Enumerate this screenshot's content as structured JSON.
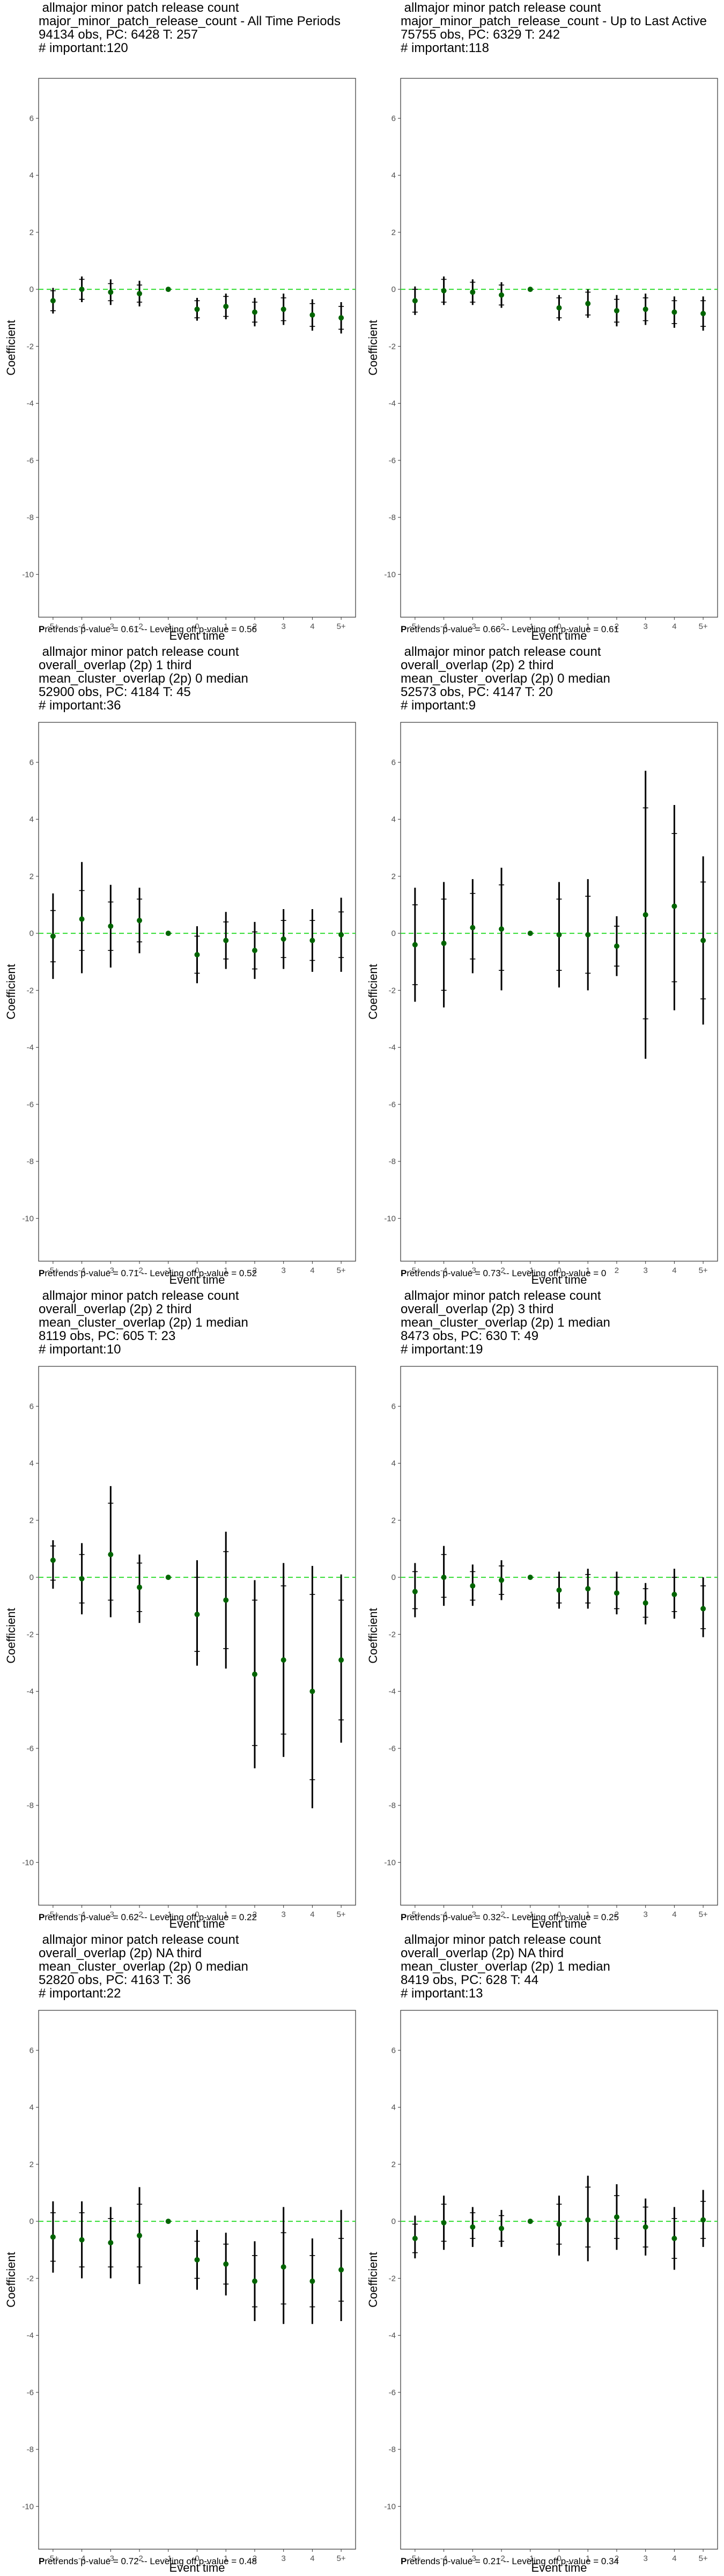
{
  "shared": {
    "xlabel": "Event time",
    "ylabel": "Coefficient",
    "x_ticks": [
      "-5+",
      "-4",
      "-3",
      "-2",
      "-1",
      "0",
      "1",
      "2",
      "3",
      "4",
      "5+"
    ],
    "y_ticks": [
      6,
      4,
      2,
      0,
      -2,
      -4,
      -6,
      -8,
      -10
    ],
    "ylim": [
      -11.5,
      7.4
    ],
    "caption_lead": "P",
    "reference_line": 0,
    "colors": {
      "reference_line": "#33dd33",
      "point": "#006400",
      "error_bar": "#000000",
      "panel_border": "#333333",
      "tick_label": "#4d4d4d"
    }
  },
  "chart_data": [
    {
      "type": "scatter",
      "title_lines": [
        " allmajor minor patch release count",
        "major_minor_patch_release_count - All Time Periods",
        "94134 obs, PC: 6428 T: 257",
        "# important:120"
      ],
      "caption": "retrends p-value = 0.61 -- Leveling off p-value = 0.56",
      "points": [
        {
          "x": "-5+",
          "y": -0.4,
          "lo90": -0.75,
          "hi90": -0.05,
          "lo95": -0.85,
          "hi95": 0.05
        },
        {
          "x": "-4",
          "y": 0.0,
          "lo90": -0.35,
          "hi90": 0.35,
          "lo95": -0.45,
          "hi95": 0.45
        },
        {
          "x": "-3",
          "y": -0.1,
          "lo90": -0.4,
          "hi90": 0.2,
          "lo95": -0.55,
          "hi95": 0.35
        },
        {
          "x": "-2",
          "y": -0.15,
          "lo90": -0.45,
          "hi90": 0.15,
          "lo95": -0.6,
          "hi95": 0.3
        },
        {
          "x": "-1",
          "y": 0.0
        },
        {
          "x": "0",
          "y": -0.7,
          "lo90": -1.0,
          "hi90": -0.4,
          "lo95": -1.1,
          "hi95": -0.3
        },
        {
          "x": "1",
          "y": -0.6,
          "lo90": -0.95,
          "hi90": -0.25,
          "lo95": -1.05,
          "hi95": -0.15
        },
        {
          "x": "2",
          "y": -0.8,
          "lo90": -1.15,
          "hi90": -0.45,
          "lo95": -1.3,
          "hi95": -0.3
        },
        {
          "x": "3",
          "y": -0.7,
          "lo90": -1.1,
          "hi90": -0.3,
          "lo95": -1.25,
          "hi95": -0.15
        },
        {
          "x": "4",
          "y": -0.9,
          "lo90": -1.3,
          "hi90": -0.5,
          "lo95": -1.45,
          "hi95": -0.35
        },
        {
          "x": "5+",
          "y": -1.0,
          "lo90": -1.4,
          "hi90": -0.6,
          "lo95": -1.55,
          "hi95": -0.45
        }
      ]
    },
    {
      "type": "scatter",
      "title_lines": [
        " allmajor minor patch release count",
        "major_minor_patch_release_count - Up to Last Active",
        "75755 obs, PC: 6329 T: 242",
        "# important:118"
      ],
      "caption": "retrends p-value = 0.66 -- Leveling off p-value = 0.61",
      "points": [
        {
          "x": "-5+",
          "y": -0.4,
          "lo90": -0.8,
          "hi90": 0.0,
          "lo95": -0.9,
          "hi95": 0.1
        },
        {
          "x": "-4",
          "y": -0.05,
          "lo90": -0.45,
          "hi90": 0.35,
          "lo95": -0.55,
          "hi95": 0.45
        },
        {
          "x": "-3",
          "y": -0.1,
          "lo90": -0.45,
          "hi90": 0.25,
          "lo95": -0.55,
          "hi95": 0.35
        },
        {
          "x": "-2",
          "y": -0.2,
          "lo90": -0.55,
          "hi90": 0.15,
          "lo95": -0.65,
          "hi95": 0.25
        },
        {
          "x": "-1",
          "y": 0.0
        },
        {
          "x": "0",
          "y": -0.65,
          "lo90": -1.0,
          "hi90": -0.3,
          "lo95": -1.1,
          "hi95": -0.2
        },
        {
          "x": "1",
          "y": -0.5,
          "lo90": -0.9,
          "hi90": -0.1,
          "lo95": -1.0,
          "hi95": 0.0
        },
        {
          "x": "2",
          "y": -0.75,
          "lo90": -1.15,
          "hi90": -0.35,
          "lo95": -1.3,
          "hi95": -0.2
        },
        {
          "x": "3",
          "y": -0.7,
          "lo90": -1.1,
          "hi90": -0.3,
          "lo95": -1.25,
          "hi95": -0.15
        },
        {
          "x": "4",
          "y": -0.8,
          "lo90": -1.2,
          "hi90": -0.4,
          "lo95": -1.35,
          "hi95": -0.25
        },
        {
          "x": "5+",
          "y": -0.85,
          "lo90": -1.3,
          "hi90": -0.4,
          "lo95": -1.45,
          "hi95": -0.25
        }
      ]
    },
    {
      "type": "scatter",
      "title_lines": [
        " allmajor minor patch release count",
        "overall_overlap (2p) 1 third",
        "mean_cluster_overlap (2p) 0 median",
        "52900 obs, PC: 4184 T: 45",
        "# important:36"
      ],
      "caption": "retrends p-value = 0.71 -- Leveling off p-value = 0.52",
      "points": [
        {
          "x": "-5+",
          "y": -0.1,
          "lo90": -1.0,
          "hi90": 0.8,
          "lo95": -1.6,
          "hi95": 1.4
        },
        {
          "x": "-4",
          "y": 0.5,
          "lo90": -0.6,
          "hi90": 1.5,
          "lo95": -1.4,
          "hi95": 2.5
        },
        {
          "x": "-3",
          "y": 0.25,
          "lo90": -0.6,
          "hi90": 1.1,
          "lo95": -1.2,
          "hi95": 1.7
        },
        {
          "x": "-2",
          "y": 0.45,
          "lo90": -0.3,
          "hi90": 1.2,
          "lo95": -0.7,
          "hi95": 1.6
        },
        {
          "x": "-1",
          "y": 0.0
        },
        {
          "x": "0",
          "y": -0.75,
          "lo90": -1.4,
          "hi90": -0.1,
          "lo95": -1.75,
          "hi95": 0.25
        },
        {
          "x": "1",
          "y": -0.25,
          "lo90": -0.9,
          "hi90": 0.4,
          "lo95": -1.25,
          "hi95": 0.75
        },
        {
          "x": "2",
          "y": -0.6,
          "lo90": -1.25,
          "hi90": 0.05,
          "lo95": -1.6,
          "hi95": 0.4
        },
        {
          "x": "3",
          "y": -0.2,
          "lo90": -0.85,
          "hi90": 0.45,
          "lo95": -1.25,
          "hi95": 0.85
        },
        {
          "x": "4",
          "y": -0.25,
          "lo90": -0.95,
          "hi90": 0.45,
          "lo95": -1.35,
          "hi95": 0.85
        },
        {
          "x": "5+",
          "y": -0.05,
          "lo90": -0.85,
          "hi90": 0.75,
          "lo95": -1.35,
          "hi95": 1.25
        }
      ]
    },
    {
      "type": "scatter",
      "title_lines": [
        " allmajor minor patch release count",
        "overall_overlap (2p) 2 third",
        "mean_cluster_overlap (2p) 0 median",
        "52573 obs, PC: 4147 T: 20",
        "# important:9"
      ],
      "caption": "retrends p-value = 0.73 -- Leveling off p-value = 0",
      "points": [
        {
          "x": "-5+",
          "y": -0.4,
          "lo90": -1.8,
          "hi90": 1.0,
          "lo95": -2.4,
          "hi95": 1.6
        },
        {
          "x": "-4",
          "y": -0.35,
          "lo90": -2.0,
          "hi90": 1.2,
          "lo95": -2.6,
          "hi95": 1.8
        },
        {
          "x": "-3",
          "y": 0.2,
          "lo90": -0.9,
          "hi90": 1.4,
          "lo95": -1.4,
          "hi95": 1.9
        },
        {
          "x": "-2",
          "y": 0.15,
          "lo90": -1.3,
          "hi90": 1.7,
          "lo95": -2.0,
          "hi95": 2.3
        },
        {
          "x": "-1",
          "y": 0.0
        },
        {
          "x": "0",
          "y": -0.05,
          "lo90": -1.3,
          "hi90": 1.2,
          "lo95": -1.9,
          "hi95": 1.8
        },
        {
          "x": "1",
          "y": -0.05,
          "lo90": -1.4,
          "hi90": 1.3,
          "lo95": -2.0,
          "hi95": 1.9
        },
        {
          "x": "2",
          "y": -0.45,
          "lo90": -1.15,
          "hi90": 0.25,
          "lo95": -1.5,
          "hi95": 0.6
        },
        {
          "x": "3",
          "y": 0.65,
          "lo90": -3.0,
          "hi90": 4.4,
          "lo95": -4.4,
          "hi95": 5.7
        },
        {
          "x": "4",
          "y": 0.95,
          "lo90": -1.7,
          "hi90": 3.5,
          "lo95": -2.7,
          "hi95": 4.5
        },
        {
          "x": "5+",
          "y": -0.25,
          "lo90": -2.3,
          "hi90": 1.8,
          "lo95": -3.2,
          "hi95": 2.7
        }
      ]
    },
    {
      "type": "scatter",
      "title_lines": [
        " allmajor minor patch release count",
        "overall_overlap (2p) 2 third",
        "mean_cluster_overlap (2p) 1 median",
        "8119 obs, PC: 605 T: 23",
        "# important:10"
      ],
      "caption": "retrends p-value = 0.62 -- Leveling off p-value = 0.22",
      "points": [
        {
          "x": "-5+",
          "y": 0.6,
          "lo90": -0.1,
          "hi90": 1.1,
          "lo95": -0.4,
          "hi95": 1.3
        },
        {
          "x": "-4",
          "y": -0.05,
          "lo90": -0.9,
          "hi90": 0.8,
          "lo95": -1.3,
          "hi95": 1.2
        },
        {
          "x": "-3",
          "y": 0.8,
          "lo90": -0.8,
          "hi90": 2.6,
          "lo95": -1.4,
          "hi95": 3.2
        },
        {
          "x": "-2",
          "y": -0.35,
          "lo90": -1.2,
          "hi90": 0.5,
          "lo95": -1.6,
          "hi95": 0.8
        },
        {
          "x": "-1",
          "y": 0.0
        },
        {
          "x": "0",
          "y": -1.3,
          "lo90": -2.6,
          "hi90": 0.0,
          "lo95": -3.1,
          "hi95": 0.6
        },
        {
          "x": "1",
          "y": -0.8,
          "lo90": -2.5,
          "hi90": 0.9,
          "lo95": -3.2,
          "hi95": 1.6
        },
        {
          "x": "2",
          "y": -3.4,
          "lo90": -5.9,
          "hi90": -0.8,
          "lo95": -6.7,
          "hi95": -0.1
        },
        {
          "x": "3",
          "y": -2.9,
          "lo90": -5.5,
          "hi90": -0.3,
          "lo95": -6.3,
          "hi95": 0.5
        },
        {
          "x": "4",
          "y": -4.0,
          "lo90": -7.1,
          "hi90": -0.6,
          "lo95": -8.1,
          "hi95": 0.4
        },
        {
          "x": "5+",
          "y": -2.9,
          "lo90": -5.0,
          "hi90": -0.8,
          "lo95": -5.8,
          "hi95": 0.1
        }
      ]
    },
    {
      "type": "scatter",
      "title_lines": [
        " allmajor minor patch release count",
        "overall_overlap (2p) 3 third",
        "mean_cluster_overlap (2p) 1 median",
        "8473 obs, PC: 630 T: 49",
        "# important:19"
      ],
      "caption": "retrends p-value = 0.32 -- Leveling off p-value = 0.25",
      "points": [
        {
          "x": "-5+",
          "y": -0.5,
          "lo90": -1.1,
          "hi90": 0.2,
          "lo95": -1.4,
          "hi95": 0.5
        },
        {
          "x": "-4",
          "y": 0.0,
          "lo90": -0.7,
          "hi90": 0.8,
          "lo95": -1.0,
          "hi95": 1.1
        },
        {
          "x": "-3",
          "y": -0.3,
          "lo90": -0.8,
          "hi90": 0.2,
          "lo95": -1.0,
          "hi95": 0.45
        },
        {
          "x": "-2",
          "y": -0.1,
          "lo90": -0.6,
          "hi90": 0.4,
          "lo95": -0.8,
          "hi95": 0.6
        },
        {
          "x": "-1",
          "y": 0.0
        },
        {
          "x": "0",
          "y": -0.45,
          "lo90": -0.9,
          "hi90": 0.0,
          "lo95": -1.1,
          "hi95": 0.2
        },
        {
          "x": "1",
          "y": -0.4,
          "lo90": -0.9,
          "hi90": 0.1,
          "lo95": -1.1,
          "hi95": 0.3
        },
        {
          "x": "2",
          "y": -0.55,
          "lo90": -1.1,
          "hi90": 0.0,
          "lo95": -1.3,
          "hi95": 0.2
        },
        {
          "x": "3",
          "y": -0.9,
          "lo90": -1.4,
          "hi90": -0.4,
          "lo95": -1.65,
          "hi95": -0.2
        },
        {
          "x": "4",
          "y": -0.6,
          "lo90": -1.2,
          "hi90": 0.0,
          "lo95": -1.45,
          "hi95": 0.3
        },
        {
          "x": "5+",
          "y": -1.1,
          "lo90": -1.8,
          "hi90": -0.3,
          "lo95": -2.1,
          "hi95": 0.0
        }
      ]
    },
    {
      "type": "scatter",
      "title_lines": [
        " allmajor minor patch release count",
        "overall_overlap (2p) NA third",
        "mean_cluster_overlap (2p) 0 median",
        "52820 obs, PC: 4163 T: 36",
        "# important:22"
      ],
      "caption": "retrends p-value = 0.72 -- Leveling off p-value = 0.48",
      "points": [
        {
          "x": "-5+",
          "y": -0.55,
          "lo90": -1.4,
          "hi90": 0.3,
          "lo95": -1.8,
          "hi95": 0.7
        },
        {
          "x": "-4",
          "y": -0.65,
          "lo90": -1.6,
          "hi90": 0.3,
          "lo95": -2.0,
          "hi95": 0.7
        },
        {
          "x": "-3",
          "y": -0.75,
          "lo90": -1.6,
          "hi90": 0.1,
          "lo95": -2.0,
          "hi95": 0.5
        },
        {
          "x": "-2",
          "y": -0.5,
          "lo90": -1.6,
          "hi90": 0.6,
          "lo95": -2.2,
          "hi95": 1.2
        },
        {
          "x": "-1",
          "y": 0.0
        },
        {
          "x": "0",
          "y": -1.35,
          "lo90": -2.0,
          "hi90": -0.7,
          "lo95": -2.4,
          "hi95": -0.3
        },
        {
          "x": "1",
          "y": -1.5,
          "lo90": -2.2,
          "hi90": -0.8,
          "lo95": -2.6,
          "hi95": -0.4
        },
        {
          "x": "2",
          "y": -2.1,
          "lo90": -3.0,
          "hi90": -1.2,
          "lo95": -3.5,
          "hi95": -0.7
        },
        {
          "x": "3",
          "y": -1.6,
          "lo90": -2.9,
          "hi90": -0.4,
          "lo95": -3.6,
          "hi95": 0.5
        },
        {
          "x": "4",
          "y": -2.1,
          "lo90": -3.0,
          "hi90": -1.2,
          "lo95": -3.6,
          "hi95": -0.6
        },
        {
          "x": "5+",
          "y": -1.7,
          "lo90": -2.8,
          "hi90": -0.6,
          "lo95": -3.5,
          "hi95": 0.4
        }
      ]
    },
    {
      "type": "scatter",
      "title_lines": [
        " allmajor minor patch release count",
        "overall_overlap (2p) NA third",
        "mean_cluster_overlap (2p) 1 median",
        "8419 obs, PC: 628 T: 44",
        "# important:13"
      ],
      "caption": "retrends p-value = 0.21 -- Leveling off p-value = 0.34",
      "points": [
        {
          "x": "-5+",
          "y": -0.6,
          "lo90": -1.1,
          "hi90": -0.1,
          "lo95": -1.3,
          "hi95": 0.2
        },
        {
          "x": "-4",
          "y": -0.05,
          "lo90": -0.7,
          "hi90": 0.6,
          "lo95": -1.0,
          "hi95": 0.9
        },
        {
          "x": "-3",
          "y": -0.2,
          "lo90": -0.6,
          "hi90": 0.3,
          "lo95": -0.9,
          "hi95": 0.5
        },
        {
          "x": "-2",
          "y": -0.25,
          "lo90": -0.7,
          "hi90": 0.2,
          "lo95": -0.9,
          "hi95": 0.4
        },
        {
          "x": "-1",
          "y": 0.0
        },
        {
          "x": "0",
          "y": -0.1,
          "lo90": -0.8,
          "hi90": 0.6,
          "lo95": -1.2,
          "hi95": 0.9
        },
        {
          "x": "1",
          "y": 0.05,
          "lo90": -0.9,
          "hi90": 1.2,
          "lo95": -1.4,
          "hi95": 1.6
        },
        {
          "x": "2",
          "y": 0.15,
          "lo90": -0.6,
          "hi90": 0.9,
          "lo95": -1.0,
          "hi95": 1.3
        },
        {
          "x": "3",
          "y": -0.2,
          "lo90": -0.9,
          "hi90": 0.5,
          "lo95": -1.2,
          "hi95": 0.8
        },
        {
          "x": "4",
          "y": -0.6,
          "lo90": -1.3,
          "hi90": 0.1,
          "lo95": -1.7,
          "hi95": 0.5
        },
        {
          "x": "5+",
          "y": 0.05,
          "lo90": -0.6,
          "hi90": 0.7,
          "lo95": -0.9,
          "hi95": 1.1
        }
      ]
    }
  ]
}
